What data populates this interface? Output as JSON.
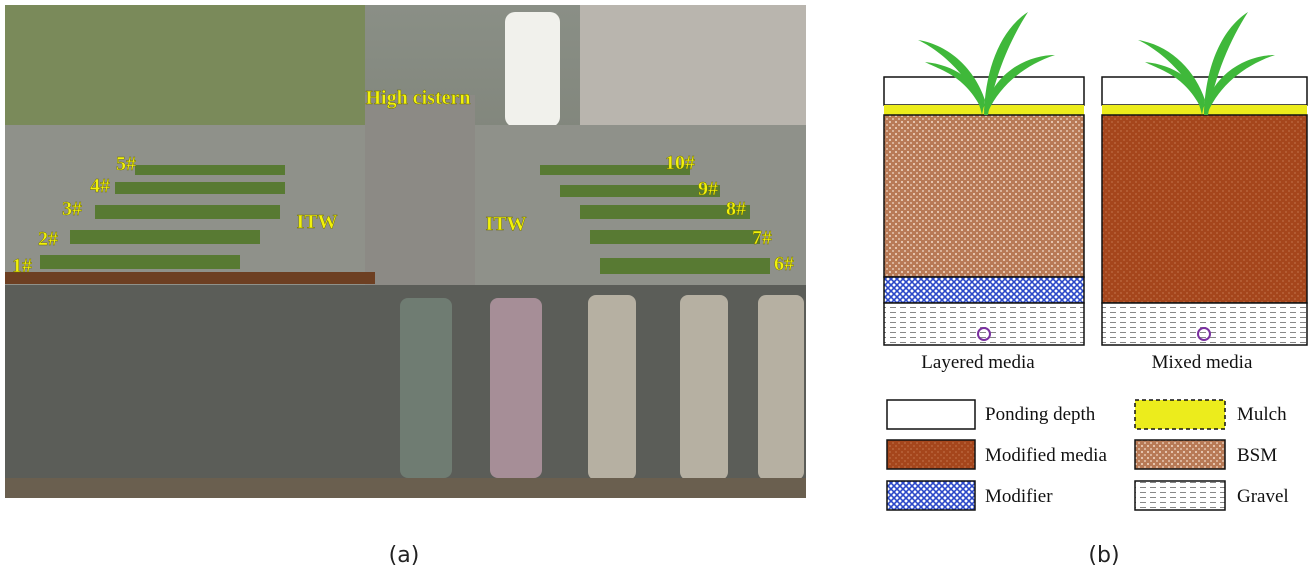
{
  "panel_a": {
    "caption": "(a)",
    "cistern": "High cistern",
    "itw": [
      "ITW",
      "ITW"
    ],
    "cells": [
      "1#",
      "2#",
      "3#",
      "4#",
      "5#",
      "6#",
      "7#",
      "8#",
      "9#",
      "10#"
    ]
  },
  "panel_b": {
    "caption": "(b)",
    "columns": [
      "Layered media",
      "Mixed media"
    ],
    "legend": [
      "Ponding depth",
      "Mulch",
      "Modified media",
      "BSM",
      "Modifier",
      "Gravel"
    ]
  }
}
